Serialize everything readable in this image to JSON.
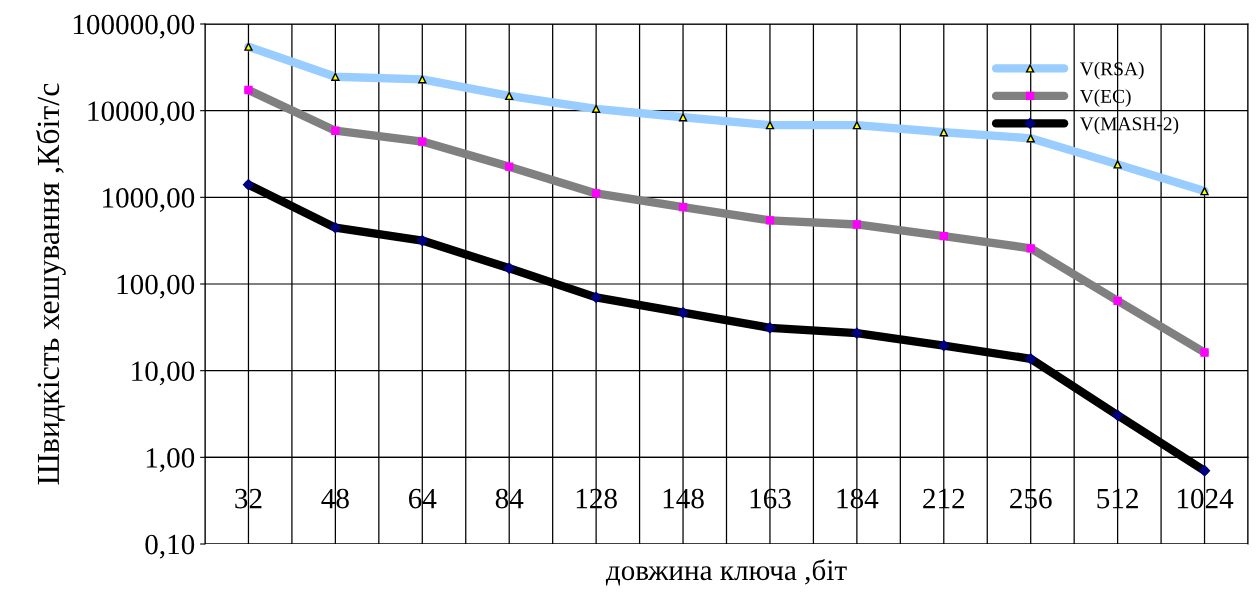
{
  "chart_data": {
    "type": "line",
    "xlabel": "довжина ключа ,біт",
    "ylabel": "Швидкість хешування ,Кбіт/с",
    "categories": [
      "32",
      "48",
      "64",
      "84",
      "128",
      "148",
      "163",
      "184",
      "212",
      "256",
      "512",
      "1024"
    ],
    "series": [
      {
        "name": "V(RSA)",
        "color": "#99ccff",
        "marker": "triangle",
        "values": [
          54700,
          24600,
          23000,
          14800,
          10500,
          8400,
          6800,
          6800,
          5640,
          4800,
          2400,
          1180
        ]
      },
      {
        "name": "V(EC)",
        "color": "#808080",
        "marker": "square",
        "values": [
          17300,
          5870,
          4400,
          2260,
          1110,
          770,
          543,
          486,
          357,
          258,
          64,
          16.2
        ]
      },
      {
        "name": "V(MASH-2)",
        "color": "#000000",
        "marker": "diamond",
        "values": [
          1400,
          447,
          317,
          152,
          70,
          46.7,
          31.2,
          27.1,
          19.5,
          13.7,
          3.05,
          0.7
        ]
      }
    ],
    "log": "y",
    "ylim": [
      0.1,
      100000
    ],
    "yticks": [
      {
        "value": 0.1,
        "label": "0,10"
      },
      {
        "value": 1,
        "label": "1,00"
      },
      {
        "value": 10,
        "label": "10,00"
      },
      {
        "value": 100,
        "label": "100,00"
      },
      {
        "value": 1000,
        "label": "1000,00"
      },
      {
        "value": 10000,
        "label": "10000,00"
      },
      {
        "value": 100000,
        "label": "100000,00"
      }
    ],
    "grid": true,
    "legend": "top right",
    "line_style": "solid"
  }
}
